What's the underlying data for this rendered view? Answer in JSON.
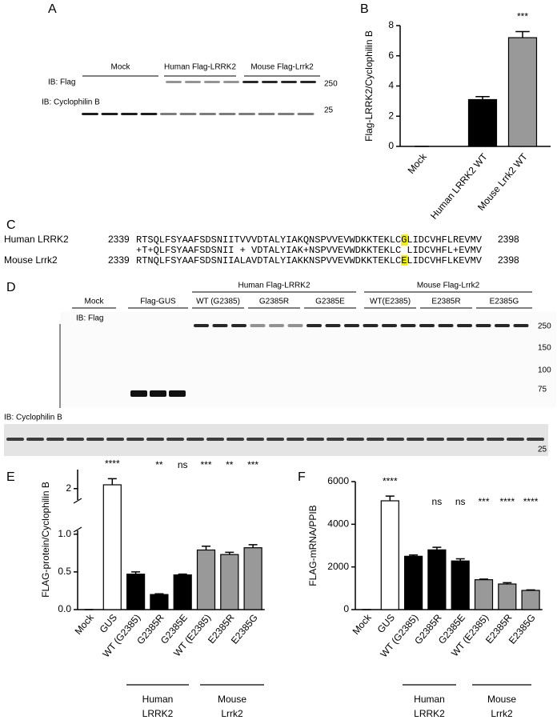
{
  "panel_labels": [
    "A",
    "B",
    "C",
    "D",
    "E",
    "F"
  ],
  "blot_a": {
    "groups": [
      "Mock",
      "Human Flag-LRRK2",
      "Mouse Flag-Lrrk2"
    ],
    "rows": [
      "IB: Flag",
      "IB: Cyclophilin B"
    ],
    "markers": [
      250,
      25
    ]
  },
  "alignment": {
    "rows": [
      {
        "name": "Human LRRK2",
        "start": 2339,
        "before": "RTSQLFSYAAFSDSNIITVVVDTALYIAKQNSPVVEVWDKKTEKLC",
        "highlight": "G",
        "after": "LIDCVHFLREVMV",
        "end": 2398
      },
      {
        "before": "+T+QLFSYAAFSDSNII + VDTALYIAK+NSPVVEVWDKKTEKLC",
        "highlight": " ",
        "after": "LIDCVHFL+EVMV"
      },
      {
        "name": "Mouse Lrrk2",
        "start": 2339,
        "before": "RTNQLFSYAAFSDSNIIALAVDTALYIAKKNSPVVEVWDKKTEKLC",
        "highlight": "E",
        "after": "LIDCVHFLKEVMV",
        "end": 2398
      }
    ]
  },
  "blot_d": {
    "groups": [
      "Mock",
      "Flag-GUS",
      "Human Flag-LRRK2",
      "Mouse Flag-Lrrk2"
    ],
    "subgroups": [
      "WT (G2385)",
      "G2385R",
      "G2385E",
      "WT(E2385)",
      "E2385R",
      "E2385G"
    ],
    "rows": [
      "IB: Flag",
      "IB: Cyclophilin B"
    ],
    "markers": [
      250,
      150,
      100,
      75,
      25
    ]
  },
  "chart_data": [
    {
      "type": "bar",
      "y_label": "Flag-LRRK2/Cyclophilin B",
      "categories": [
        "Mock",
        "Human LRRK2 WT",
        "Mouse Lrrk2 WT"
      ],
      "values": [
        0,
        3.1,
        7.2
      ],
      "errors": [
        0,
        0.2,
        0.4
      ],
      "colors": [
        "#000000",
        "#000000",
        "#999999"
      ],
      "annotations": [
        null,
        null,
        "***"
      ],
      "ylim": [
        0,
        8
      ],
      "yticks": [
        0,
        2,
        4,
        6,
        8
      ]
    },
    {
      "type": "bar",
      "y_label": "FLAG-protein/Cyclophilin B",
      "categories": [
        "Mock",
        "GUS",
        "WT (G2385)",
        "G2385R",
        "G2385E",
        "WT (E2385)",
        "E2385R",
        "E2385G"
      ],
      "values": [
        0,
        2.05,
        0.47,
        0.2,
        0.46,
        0.79,
        0.73,
        0.82
      ],
      "errors": [
        0,
        0.08,
        0.03,
        0.01,
        0.01,
        0.05,
        0.03,
        0.04
      ],
      "colors": [
        "#ffffff",
        "#ffffff",
        "#000000",
        "#000000",
        "#000000",
        "#999999",
        "#999999",
        "#999999"
      ],
      "annotations": [
        null,
        "****",
        null,
        "**",
        "ns",
        "***",
        "**",
        "***"
      ],
      "ylim": [
        0,
        1.05
      ],
      "yticks": [
        {
          "value": 0,
          "label": "0.0"
        },
        0.5,
        {
          "value": 1,
          "label": "1.0"
        }
      ],
      "break": {
        "ylim": [
          1.85,
          2.25
        ],
        "yticks": [
          2
        ]
      },
      "category_groups": [
        {
          "name": [
            "Human",
            "LRRK2"
          ]
        },
        {
          "name": [
            "Mouse",
            "Lrrk2"
          ]
        }
      ]
    },
    {
      "type": "bar",
      "y_label": "FLAG-mRNA/PPIB",
      "categories": [
        "Mock",
        "GUS",
        "WT (G2385)",
        "G2385R",
        "G2385E",
        "WT (E2385)",
        "E2385R",
        "E2385G"
      ],
      "values": [
        0,
        5100,
        2500,
        2800,
        2280,
        1400,
        1200,
        900
      ],
      "errors": [
        0,
        220,
        60,
        120,
        100,
        30,
        60,
        25
      ],
      "colors": [
        "#ffffff",
        "#ffffff",
        "#000000",
        "#000000",
        "#000000",
        "#999999",
        "#999999",
        "#999999"
      ],
      "annotations": [
        null,
        "****",
        null,
        "ns",
        "ns",
        "***",
        "****",
        "****"
      ],
      "ylim": [
        0,
        6000
      ],
      "yticks": [
        0,
        2000,
        4000,
        6000
      ],
      "category_groups": [
        {
          "name": [
            "Human",
            "LRRK2"
          ]
        },
        {
          "name": [
            "Mouse",
            "Lrrk2"
          ]
        }
      ]
    }
  ]
}
